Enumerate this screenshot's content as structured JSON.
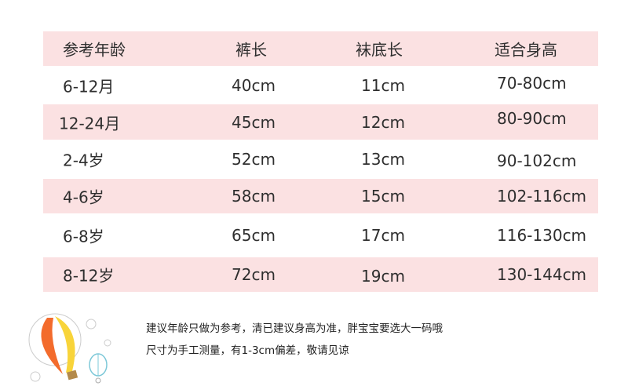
{
  "table": {
    "headers": [
      "参考年龄",
      "裤长",
      "袜底长",
      "适合身高"
    ],
    "rows": [
      [
        "6-12月",
        "40cm",
        "11cm",
        "70-80cm"
      ],
      [
        "12-24月",
        "45cm",
        "12cm",
        "80-90cm"
      ],
      [
        "2-4岁",
        "52cm",
        "13cm",
        "90-102cm"
      ],
      [
        "4-6岁",
        "58cm",
        "15cm",
        "102-116cm"
      ],
      [
        "6-8岁",
        "65cm",
        "17cm",
        "116-130cm"
      ],
      [
        "8-12岁",
        "72cm",
        "19cm",
        "130-144cm"
      ]
    ]
  },
  "notes": [
    "建议年龄只做为参考，清已建议身高为准，胖宝宝要选大一码哦",
    "尺寸为手工测量，有1-3cm偏差，敬请见谅"
  ],
  "colors": {
    "row_highlight": "#fbe1e2",
    "text": "#2e2e2e"
  },
  "decoration": "hot-air-balloon-icon"
}
